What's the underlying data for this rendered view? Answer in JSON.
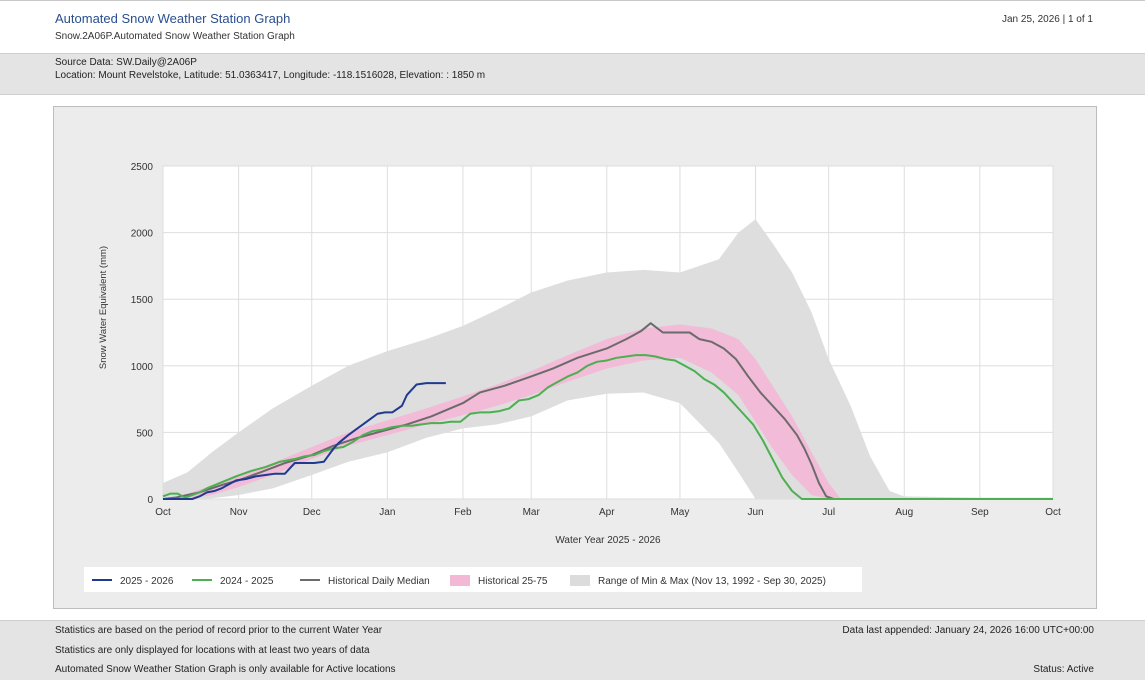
{
  "header": {
    "title": "Automated Snow Weather Station Graph",
    "subtitle": "Snow.2A06P.Automated Snow Weather Station Graph",
    "date_page": "Jan 25, 2026 | 1 of 1"
  },
  "source": {
    "data": "Source Data: SW.Daily@2A06P",
    "location": "Location: Mount Revelstoke, Latitude: 51.0363417, Longitude: -118.1516028, Elevation: : 1850 m"
  },
  "footer": {
    "note1": "Statistics are based on the period of record prior to the current Water Year",
    "note2": "Statistics are only displayed for locations with at least two years of data",
    "note3": "Automated Snow Weather Station Graph is only available for Active locations",
    "last_appended": "Data last appended: January 24, 2026 16:00 UTC+00:00",
    "status": "Status: Active"
  },
  "colors": {
    "current": "#1f3a8f",
    "previous": "#4caf50",
    "median": "#6b6b6b",
    "band_25_75": "#f2b8d6",
    "band_minmax": "#dcdcdc"
  },
  "chart_data": {
    "type": "line",
    "title": "",
    "xlabel": "Water Year 2025 - 2026",
    "ylabel": "Snow Water Equivalent (mm)",
    "xlim": [
      0,
      365
    ],
    "ylim": [
      0,
      2500
    ],
    "yticks": [
      0,
      500,
      1000,
      1500,
      2000,
      2500
    ],
    "xticks": [
      {
        "label": "Oct",
        "day": 0
      },
      {
        "label": "Nov",
        "day": 31
      },
      {
        "label": "Dec",
        "day": 61
      },
      {
        "label": "Jan",
        "day": 92
      },
      {
        "label": "Feb",
        "day": 123
      },
      {
        "label": "Mar",
        "day": 151
      },
      {
        "label": "Apr",
        "day": 182
      },
      {
        "label": "May",
        "day": 212
      },
      {
        "label": "Jun",
        "day": 243
      },
      {
        "label": "Jul",
        "day": 273
      },
      {
        "label": "Aug",
        "day": 304
      },
      {
        "label": "Sep",
        "day": 335
      },
      {
        "label": "Oct",
        "day": 365
      }
    ],
    "bands": [
      {
        "name": "Range of Min & Max (Nov 13, 1992 - Sep 30, 2025)",
        "color": "#dcdcdc",
        "x": [
          0,
          10,
          20,
          31,
          45,
          61,
          76,
          92,
          108,
          123,
          137,
          151,
          166,
          182,
          197,
          212,
          228,
          236,
          243,
          250,
          258,
          266,
          273,
          282,
          290,
          298,
          304,
          335,
          365
        ],
        "low": [
          0,
          0,
          5,
          30,
          80,
          180,
          280,
          350,
          460,
          530,
          560,
          620,
          740,
          790,
          800,
          720,
          420,
          200,
          0,
          0,
          0,
          0,
          0,
          0,
          0,
          0,
          0,
          0,
          0
        ],
        "high": [
          120,
          200,
          350,
          500,
          680,
          850,
          1000,
          1110,
          1200,
          1300,
          1420,
          1550,
          1640,
          1700,
          1720,
          1700,
          1800,
          2000,
          2100,
          1920,
          1700,
          1400,
          1050,
          700,
          320,
          60,
          20,
          10,
          10
        ]
      },
      {
        "name": "Historical 25-75",
        "color": "#f2b8d6",
        "x": [
          0,
          10,
          20,
          31,
          45,
          61,
          76,
          92,
          108,
          123,
          137,
          151,
          166,
          182,
          197,
          212,
          225,
          236,
          243,
          250,
          258,
          266,
          273,
          278,
          304,
          365
        ],
        "low": [
          0,
          0,
          30,
          90,
          180,
          300,
          400,
          480,
          560,
          630,
          700,
          780,
          880,
          980,
          1040,
          1060,
          950,
          780,
          580,
          380,
          180,
          30,
          0,
          0,
          0,
          0
        ],
        "high": [
          0,
          40,
          100,
          170,
          270,
          390,
          500,
          590,
          680,
          770,
          860,
          960,
          1080,
          1200,
          1280,
          1310,
          1280,
          1200,
          1050,
          850,
          620,
          350,
          120,
          0,
          0,
          0
        ]
      }
    ],
    "series": [
      {
        "name": "2025 - 2026",
        "color": "#1f3a8f",
        "x": [
          0,
          12,
          15,
          18,
          21,
          24,
          26,
          30,
          34,
          38,
          42,
          46,
          50,
          54,
          58,
          62,
          66,
          70,
          72,
          76,
          79,
          82,
          85,
          88,
          91,
          94,
          98,
          100,
          104,
          108,
          110,
          113,
          116
        ],
        "y": [
          0,
          0,
          20,
          50,
          60,
          80,
          100,
          140,
          150,
          170,
          180,
          190,
          190,
          270,
          270,
          270,
          280,
          380,
          420,
          480,
          520,
          560,
          600,
          640,
          650,
          650,
          700,
          780,
          860,
          870,
          870,
          870,
          870
        ]
      },
      {
        "name": "2024 - 2025",
        "color": "#4caf50",
        "x": [
          0,
          3,
          6,
          9,
          12,
          15,
          18,
          22,
          26,
          30,
          36,
          42,
          48,
          54,
          58,
          62,
          66,
          70,
          74,
          78,
          82,
          86,
          90,
          94,
          98,
          102,
          106,
          110,
          114,
          118,
          122,
          126,
          130,
          134,
          138,
          142,
          146,
          150,
          154,
          158,
          162,
          166,
          170,
          174,
          178,
          182,
          186,
          190,
          194,
          198,
          202,
          206,
          210,
          214,
          218,
          222,
          226,
          230,
          234,
          238,
          242,
          246,
          250,
          254,
          258,
          262,
          266,
          270,
          304,
          365
        ],
        "y": [
          20,
          40,
          40,
          10,
          30,
          50,
          80,
          110,
          140,
          170,
          210,
          240,
          280,
          300,
          320,
          330,
          360,
          380,
          390,
          430,
          480,
          510,
          520,
          540,
          550,
          550,
          560,
          570,
          570,
          580,
          580,
          640,
          650,
          650,
          660,
          680,
          740,
          750,
          780,
          840,
          880,
          920,
          950,
          1000,
          1030,
          1040,
          1060,
          1070,
          1080,
          1080,
          1070,
          1050,
          1040,
          1000,
          960,
          900,
          860,
          800,
          720,
          640,
          560,
          440,
          300,
          160,
          60,
          0,
          0,
          0,
          0,
          0
        ]
      },
      {
        "name": "Historical Daily Median",
        "color": "#6b6b6b",
        "x": [
          0,
          5,
          10,
          15,
          20,
          25,
          31,
          40,
          50,
          61,
          70,
          80,
          92,
          100,
          110,
          123,
          130,
          140,
          151,
          160,
          170,
          182,
          190,
          196,
          200,
          205,
          210,
          216,
          220,
          225,
          230,
          235,
          240,
          245,
          250,
          255,
          260,
          263,
          266,
          269,
          272,
          275,
          290,
          304,
          335,
          365
        ],
        "y": [
          0,
          10,
          30,
          50,
          80,
          110,
          140,
          200,
          270,
          330,
          400,
          460,
          520,
          560,
          620,
          720,
          800,
          850,
          920,
          980,
          1060,
          1130,
          1200,
          1260,
          1320,
          1250,
          1250,
          1250,
          1200,
          1180,
          1130,
          1050,
          920,
          800,
          700,
          600,
          480,
          380,
          260,
          120,
          20,
          0,
          0,
          0,
          0,
          0
        ]
      }
    ],
    "legend": [
      {
        "label": "2025 - 2026",
        "kind": "line",
        "color": "#1f3a8f"
      },
      {
        "label": "2024 - 2025",
        "kind": "line",
        "color": "#4caf50"
      },
      {
        "label": "Historical Daily Median",
        "kind": "line",
        "color": "#6b6b6b"
      },
      {
        "label": "Historical 25-75",
        "kind": "box",
        "color": "#f2b8d6"
      },
      {
        "label": "Range of Min & Max (Nov 13, 1992 - Sep 30, 2025)",
        "kind": "box",
        "color": "#dcdcdc"
      }
    ],
    "legend_position": "bottom-left",
    "grid": true
  }
}
